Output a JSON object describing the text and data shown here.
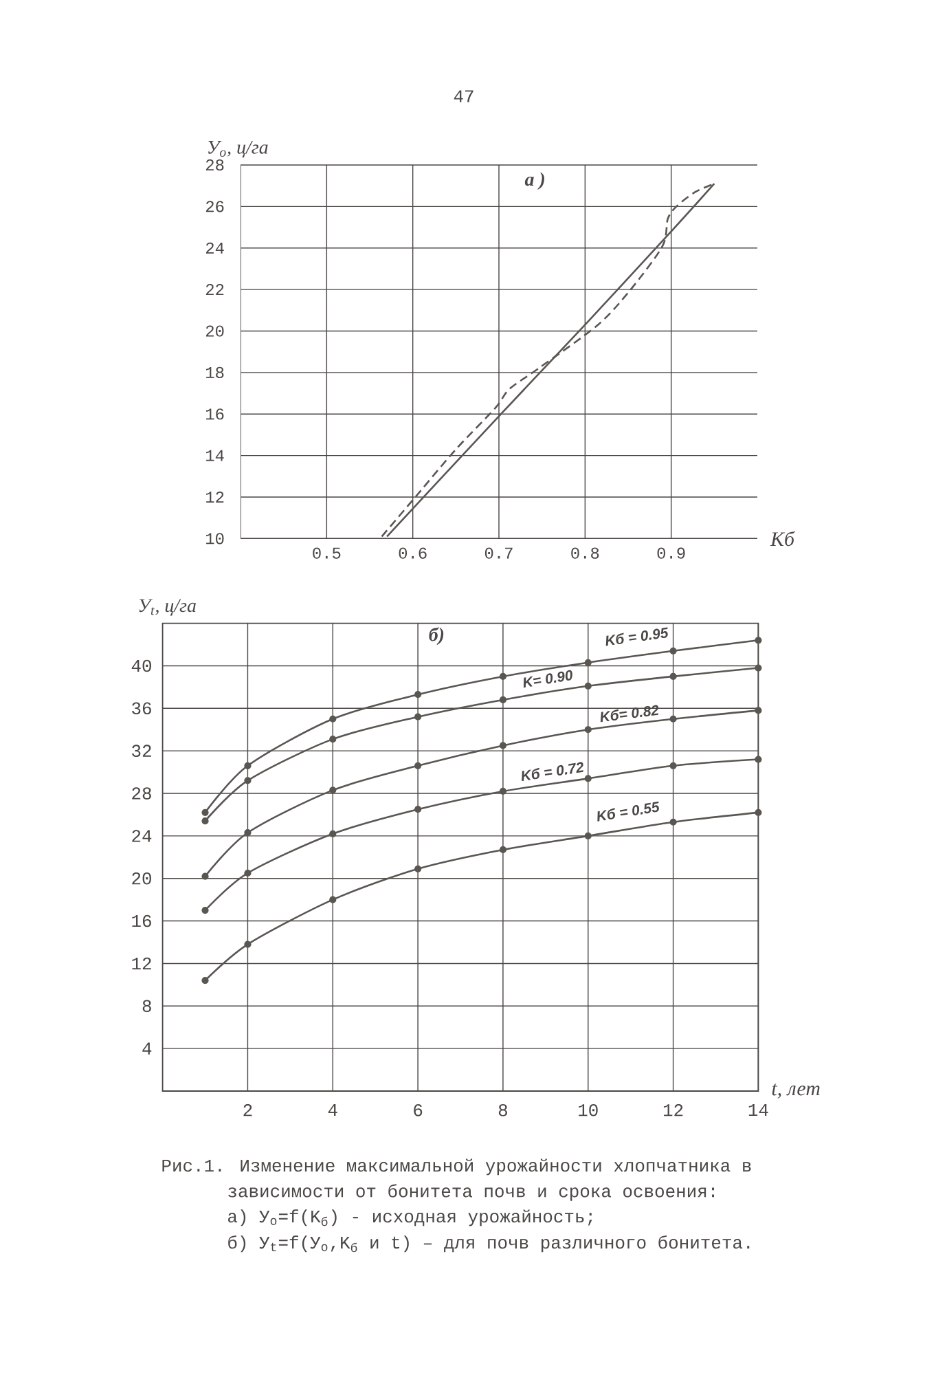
{
  "chart_data": [
    {
      "type": "line",
      "title": "а )",
      "xlabel": "Kб",
      "ylabel": "У$_{о}$, ц/га",
      "xlim": [
        0.4,
        1.0
      ],
      "ylim": [
        10,
        28
      ],
      "xticks": [
        0.5,
        0.6,
        0.7,
        0.8,
        0.9
      ],
      "yticks": [
        10,
        12,
        14,
        16,
        18,
        20,
        22,
        24,
        26,
        28
      ],
      "grid": true,
      "series": [
        {
          "color": "#5a5652",
          "line_style": "solid",
          "x": [
            0.57,
            0.7,
            0.8,
            0.9,
            0.95
          ],
          "values": [
            10.1,
            15.9,
            20.3,
            24.8,
            27.1
          ]
        },
        {
          "color": "#5a5652",
          "line_style": "dashed",
          "x": [
            0.564,
            0.605,
            0.65,
            0.696,
            0.712,
            0.746,
            0.815,
            0.853,
            0.89,
            0.896,
            0.906,
            0.928,
            0.95
          ],
          "values": [
            10.1,
            12.1,
            14.3,
            16.3,
            17.2,
            18.2,
            20.3,
            22.0,
            24.1,
            25.4,
            26.0,
            26.7,
            27.1
          ]
        }
      ],
      "annotations": [
        "47"
      ]
    },
    {
      "type": "line",
      "title": "б)",
      "xlabel": "*t*, лет",
      "ylabel": "У$_{t}$, ц/га",
      "x": [
        1,
        2,
        4,
        6,
        8,
        10,
        12,
        14
      ],
      "xlim": [
        0,
        14
      ],
      "ylim": [
        0,
        44
      ],
      "xticks": [
        2,
        4,
        6,
        8,
        10,
        12,
        14
      ],
      "yticks": [
        4,
        8,
        12,
        16,
        20,
        24,
        28,
        32,
        36,
        40
      ],
      "grid": true,
      "marker": "circle",
      "line_style": "solid",
      "series": [
        {
          "name": "Kб = 0.95",
          "color": "#5a5652",
          "values": [
            26.2,
            30.6,
            35.0,
            37.3,
            39.0,
            40.3,
            41.4,
            42.4
          ]
        },
        {
          "name": "K= 0.90",
          "color": "#5a5652",
          "values": [
            25.4,
            29.2,
            33.1,
            35.2,
            36.8,
            38.1,
            39.0,
            39.8
          ]
        },
        {
          "name": "Kб= 0.82",
          "color": "#5a5652",
          "values": [
            20.2,
            24.3,
            28.3,
            30.6,
            32.5,
            34.0,
            35.0,
            35.8
          ]
        },
        {
          "name": "Kб = 0.72",
          "color": "#5a5652",
          "values": [
            17.0,
            20.5,
            24.2,
            26.5,
            28.2,
            29.4,
            30.6,
            31.2
          ]
        },
        {
          "name": "Kб = 0.55",
          "color": "#5a5652",
          "values": [
            10.4,
            13.8,
            18.0,
            20.9,
            22.7,
            24.0,
            25.3,
            26.2
          ]
        }
      ],
      "annotations": [
        "Рис.1. Изменение максимальной урожайности хлопчатника в зависимости от бонитета почв и срока освоения:",
        "а) У$_{о}$=f(K$_{б}$) - исходная урожайность;",
        "б) У$_{t}$=f(У$_{о}$,K$_{б}$ и t) – для почв различного бонитета."
      ]
    }
  ]
}
